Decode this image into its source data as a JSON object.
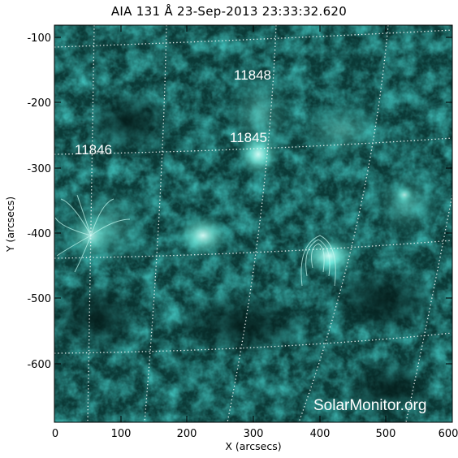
{
  "title": "AIA 131 Å 23-Sep-2013 23:33:32.620",
  "axes": {
    "x_label": "X (arcsecs)",
    "y_label": "Y (arcsecs)",
    "x_ticks": [
      "0",
      "100",
      "200",
      "300",
      "400",
      "500",
      "600"
    ],
    "y_ticks": [
      "-100",
      "-200",
      "-300",
      "-400",
      "-500",
      "-600"
    ],
    "x_range": [
      0,
      600
    ],
    "y_range": [
      -690,
      -80
    ]
  },
  "regions": [
    {
      "id": "11848",
      "x": 270,
      "y": -165
    },
    {
      "id": "11845",
      "x": 265,
      "y": -255
    },
    {
      "id": "11846",
      "x": 28,
      "y": -280
    }
  ],
  "watermark": "SolarMonitor.org",
  "colors": {
    "background": "#0b3a37",
    "emission": "#7ff5e6",
    "grid": "#ffffff",
    "frame": "#000000"
  }
}
